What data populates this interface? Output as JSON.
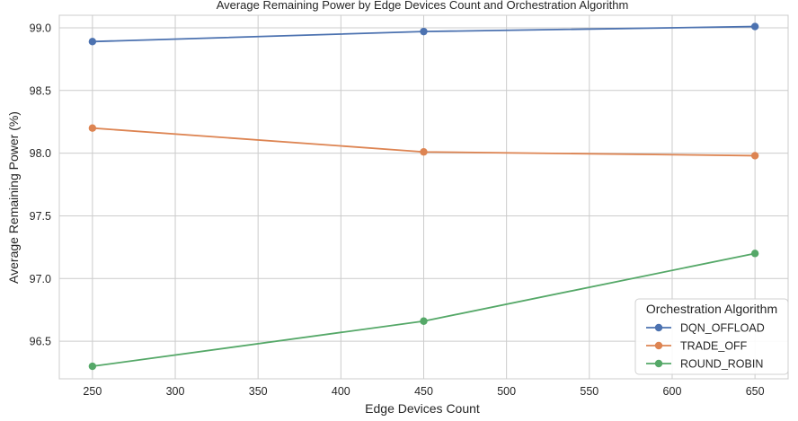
{
  "chart_data": {
    "type": "line",
    "title": "Average Remaining Power by Edge Devices Count and Orchestration Algorithm",
    "xlabel": "Edge Devices Count",
    "ylabel": "Average Remaining Power (%)",
    "x": [
      250,
      450,
      650
    ],
    "xlim": [
      230,
      670
    ],
    "ylim": [
      96.2,
      99.1
    ],
    "xticks": [
      250,
      300,
      350,
      400,
      450,
      500,
      550,
      600,
      650
    ],
    "yticks": [
      "96.5",
      "97.0",
      "97.5",
      "98.0",
      "98.5",
      "99.0"
    ],
    "grid": true,
    "legend": {
      "title": "Orchestration Algorithm",
      "placement": "lower-right"
    },
    "series": [
      {
        "name": "DQN_OFFLOAD",
        "color": "#4c72b0",
        "values": [
          98.89,
          98.97,
          99.01
        ]
      },
      {
        "name": "TRADE_OFF",
        "color": "#dd8452",
        "values": [
          98.2,
          98.01,
          97.98
        ]
      },
      {
        "name": "ROUND_ROBIN",
        "color": "#55a868",
        "values": [
          96.3,
          96.66,
          97.2
        ]
      }
    ]
  }
}
